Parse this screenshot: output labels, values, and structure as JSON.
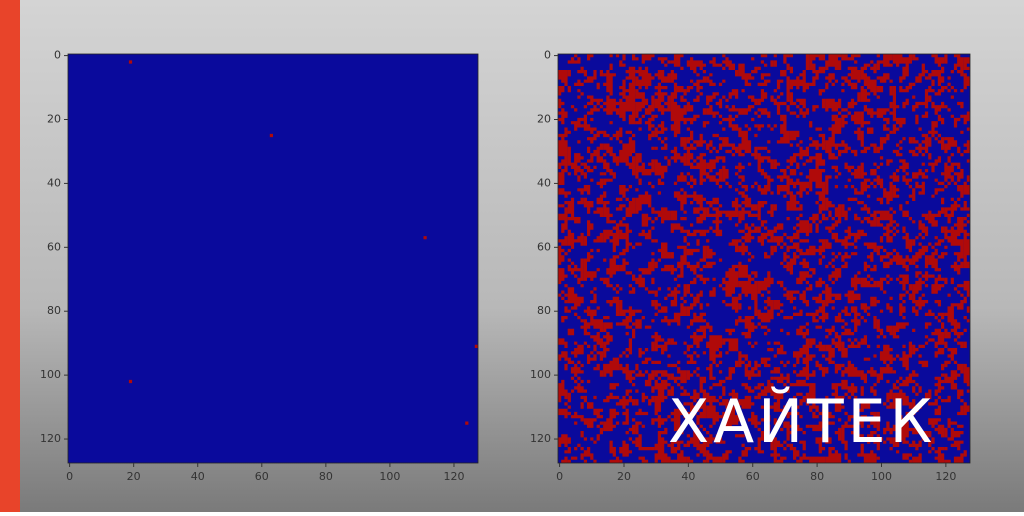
{
  "chart_data": [
    {
      "type": "heatmap",
      "colors": [
        "#0a0a9c",
        "#b00a0a"
      ],
      "xlim": [
        -0.5,
        127.5
      ],
      "ylim": [
        127.5,
        -0.5
      ],
      "xticks": [
        0,
        20,
        40,
        60,
        80,
        100,
        120
      ],
      "yticks": [
        0,
        20,
        40,
        60,
        80,
        100,
        120
      ]
    },
    {
      "type": "heatmap",
      "colors": [
        "#0a0a9c",
        "#b00a0a"
      ],
      "xlim": [
        -0.5,
        127.5
      ],
      "ylim": [
        127.5,
        -0.5
      ],
      "xticks": [
        0,
        20,
        40,
        60,
        80,
        100,
        120
      ],
      "yticks": [
        0,
        20,
        40,
        60,
        80,
        100,
        120
      ]
    }
  ],
  "watermark": "ХАЙТЕК"
}
